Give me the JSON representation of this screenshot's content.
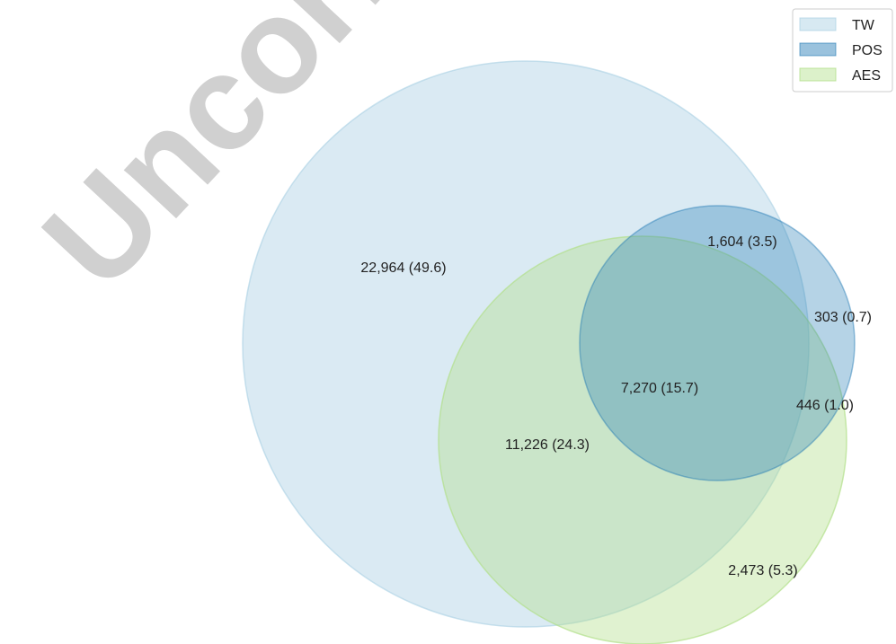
{
  "venn": {
    "sets": [
      {
        "key": "tw",
        "name": "TW",
        "color": "#a6cee3"
      },
      {
        "key": "pos",
        "name": "POS",
        "color": "#1f78b4"
      },
      {
        "key": "aes",
        "name": "AES",
        "color": "#b2df8a"
      }
    ],
    "regions": {
      "tw_only": "22,964 (49.6)",
      "tw_pos": "1,604 (3.5)",
      "pos_only": "303 (0.7)",
      "all_three": "7,270 (15.7)",
      "pos_aes": "446 (1.0)",
      "tw_aes": "11,226 (24.3)",
      "aes_only": "2,473 (5.3)"
    }
  },
  "watermark": "Uncorrected"
}
